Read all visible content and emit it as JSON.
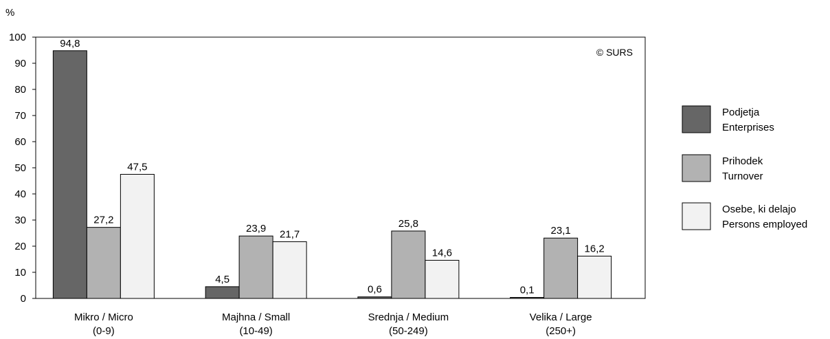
{
  "chart_data": {
    "type": "bar",
    "unit_label": "%",
    "copyright": "© SURS",
    "ylim": [
      0,
      100
    ],
    "yticks": [
      0,
      10,
      20,
      30,
      40,
      50,
      60,
      70,
      80,
      90,
      100
    ],
    "grid": false,
    "legend_position": "right",
    "categories": [
      [
        "Mikro / Micro",
        "(0-9)"
      ],
      [
        "Majhna / Small",
        "(10-49)"
      ],
      [
        "Srednja / Medium",
        "(50-249)"
      ],
      [
        "Velika / Large",
        "(250+)"
      ]
    ],
    "series": [
      {
        "name": [
          "Podjetja",
          "Enterprises"
        ],
        "color": "#666666",
        "values": [
          94.8,
          4.5,
          0.6,
          0.1
        ],
        "labels": [
          "94,8",
          "4,5",
          "0,6",
          "0,1"
        ]
      },
      {
        "name": [
          "Prihodek",
          "Turnover"
        ],
        "color": "#b2b2b2",
        "values": [
          27.2,
          23.9,
          25.8,
          23.1
        ],
        "labels": [
          "27,2",
          "23,9",
          "25,8",
          "23,1"
        ]
      },
      {
        "name": [
          "Osebe, ki delajo",
          "Persons employed"
        ],
        "color": "#f2f2f2",
        "values": [
          47.5,
          21.7,
          14.6,
          16.2
        ],
        "labels": [
          "47,5",
          "21,7",
          "14,6",
          "16,2"
        ]
      }
    ]
  }
}
